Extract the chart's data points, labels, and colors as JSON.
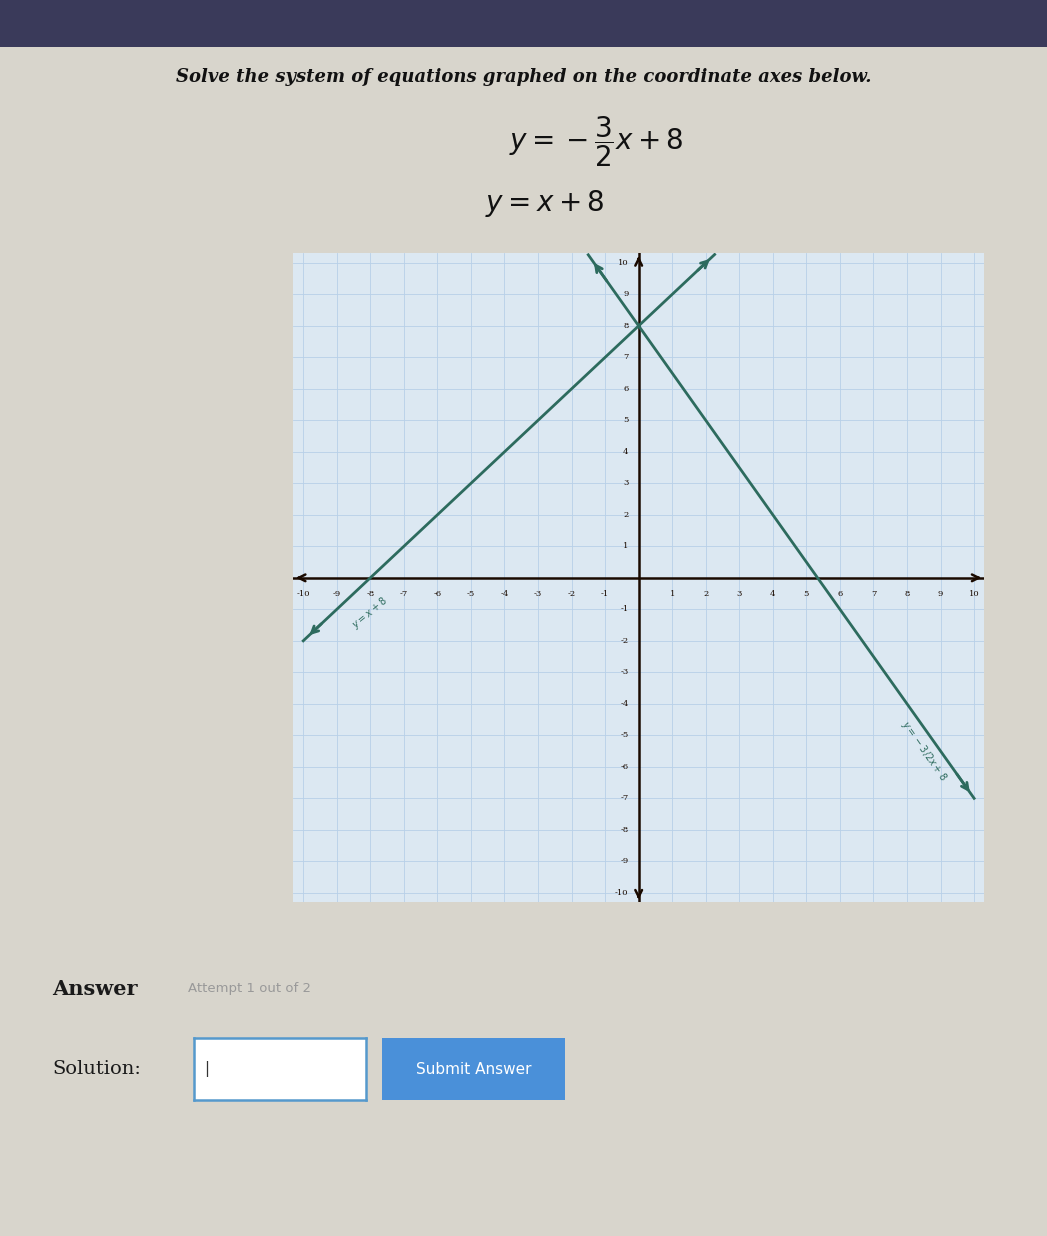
{
  "title": "Solve the system of equations graphed on the coordinate axes below.",
  "eq1_slope": -1.5,
  "eq1_intercept": 8,
  "eq2_slope": 1,
  "eq2_intercept": 8,
  "xmin": -10,
  "xmax": 10,
  "ymin": -10,
  "ymax": 10,
  "line_color": "#2d6b5e",
  "axis_color": "#1a0a00",
  "grid_color": "#b8d0e8",
  "bg_color": "#d8d5cc",
  "plot_bg": "#dce8f2",
  "top_bar_color": "#3a3a5a",
  "answer_text": "Answer",
  "attempt_text": "Attempt 1 out of 2",
  "solution_label": "Solution:",
  "submit_text": "Submit Answer",
  "answer_color": "#1a1a1a",
  "attempt_color": "#999999",
  "solution_color": "#1a1a1a",
  "submit_bg": "#4a90d9",
  "submit_text_color": "#ffffff",
  "input_border_color": "#5599cc"
}
